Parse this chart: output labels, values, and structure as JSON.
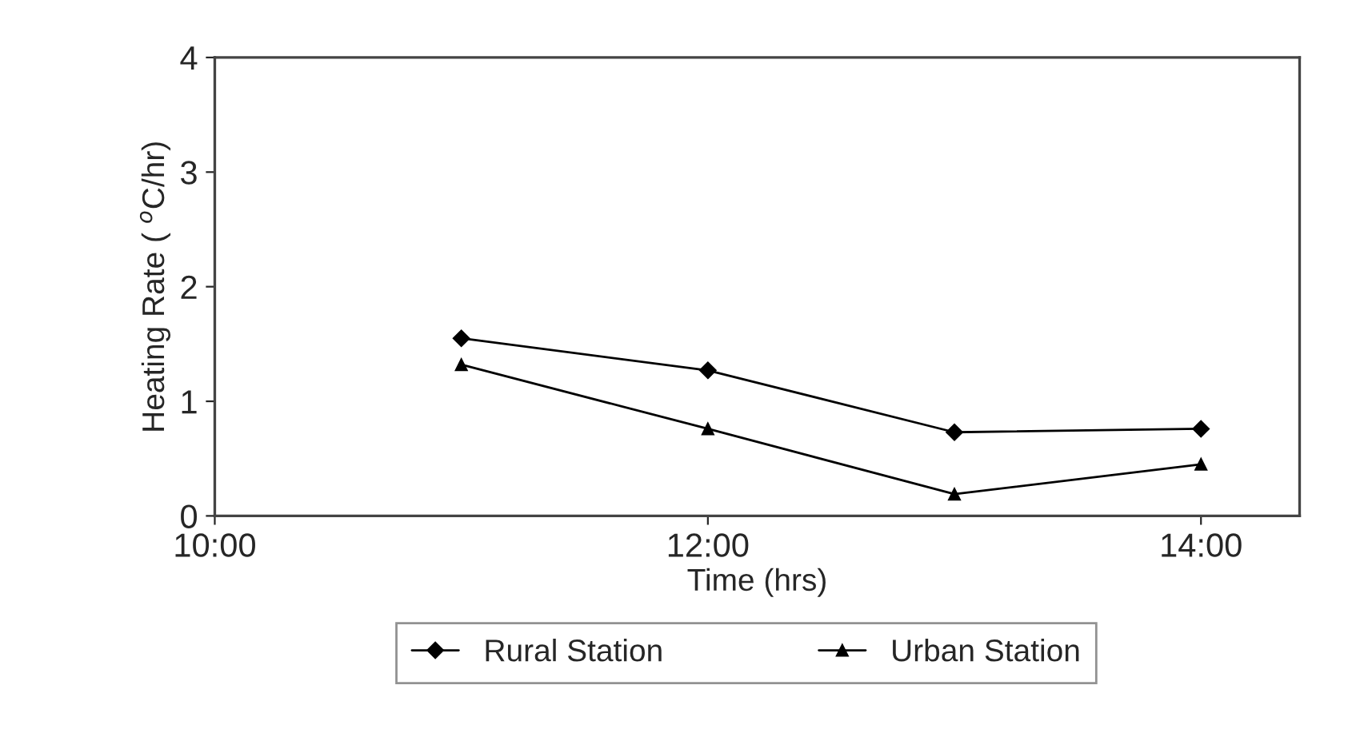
{
  "chart_data": {
    "type": "line",
    "xlabel": "Time (hrs)",
    "ylabel": "Heating Rate ( $^{o}$C/hr)",
    "x": [
      11,
      12,
      13,
      14
    ],
    "series": [
      {
        "name": "Rural Station",
        "color": "#000000",
        "marker": "diamond",
        "values": [
          1.55,
          1.27,
          0.73,
          0.76
        ]
      },
      {
        "name": "Urban Station",
        "color": "#000000",
        "marker": "triangle",
        "values": [
          1.32,
          0.76,
          0.19,
          0.45
        ]
      }
    ],
    "xlim": [
      10,
      14.4
    ],
    "xticks": [
      {
        "value": 10,
        "label": "10:00"
      },
      {
        "value": 12,
        "label": "12:00"
      },
      {
        "value": 14,
        "label": "14:00"
      }
    ],
    "ylim": [
      0,
      4
    ],
    "yticks": [
      0,
      1,
      2,
      3,
      4
    ],
    "grid": false,
    "legend": "bottom",
    "line_style": "solid"
  }
}
